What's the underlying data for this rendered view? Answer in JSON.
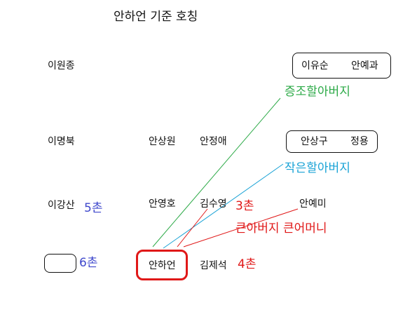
{
  "title": "안하언 기준 호칭",
  "people": {
    "i_wonjong": "이원종",
    "i_yusun": "이유순",
    "an_yegwa": "안예과",
    "i_myeongbuk": "이명북",
    "an_sangwon": "안상원",
    "an_jeongae": "안정애",
    "an_sanggu": "안상구",
    "jeongyong": "정용",
    "i_gangsan": "이강산",
    "an_yeongho": "안영호",
    "gim_suyeong": "김수영",
    "an_yemi": "안예미",
    "an_haeon": "안하언",
    "gim_jeseok": "김제석"
  },
  "labels": {
    "great_grandfather": "증조할아버지",
    "great_uncle": "작은할아버지",
    "aunt_uncle": "큰아버지 큰어머니",
    "chon5": "5촌",
    "chon3": "3촌",
    "chon6": "6촌",
    "chon4": "4촌"
  },
  "colors": {
    "green": "#2daa48",
    "blue": "#1aa3d6",
    "red": "#e01818",
    "indigo": "#3f48cc"
  }
}
